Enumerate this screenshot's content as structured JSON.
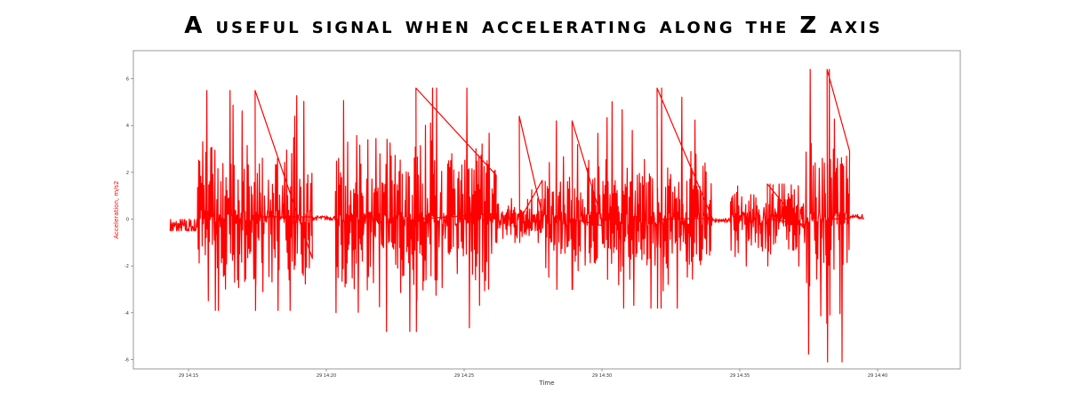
{
  "page_title": "A useful signal when accelerating along the Z axis",
  "chart_data": {
    "type": "line",
    "xlabel": "Time",
    "ylabel": "Acceleration, m/s2",
    "ylim": [
      -6.4,
      7.2
    ],
    "yticks": [
      6,
      4,
      2,
      0,
      -2,
      -4,
      -6
    ],
    "xticks": [
      "29 14:15",
      "29 14:20",
      "29 14:25",
      "29 14:30",
      "29 14:35",
      "29 14:40"
    ],
    "xlim_seconds": [
      0,
      1800
    ],
    "x_range_seconds": [
      80,
      1590
    ],
    "grid": false,
    "legend": "none",
    "series": [
      {
        "color": "#ff0000",
        "segments": [
          {
            "start": 80,
            "end": 140,
            "baseline": -0.35,
            "amp": 0.4,
            "min": -0.5,
            "max": 0.1
          },
          {
            "start": 140,
            "end": 390,
            "baseline": 0.1,
            "amp": 2.8,
            "min": -3.9,
            "max": 5.5
          },
          {
            "start": 390,
            "end": 440,
            "baseline": 0.05,
            "amp": 0.1,
            "min": -0.1,
            "max": 0.2
          },
          {
            "start": 440,
            "end": 790,
            "baseline": 0.0,
            "amp": 3.2,
            "min": -4.8,
            "max": 5.6
          },
          {
            "start": 790,
            "end": 890,
            "baseline": 0.0,
            "amp": 0.8,
            "min": -1.0,
            "max": 4.4
          },
          {
            "start": 890,
            "end": 1020,
            "baseline": 0.0,
            "amp": 2.2,
            "min": -3.0,
            "max": 4.2
          },
          {
            "start": 1020,
            "end": 1260,
            "baseline": 0.0,
            "amp": 2.4,
            "min": -3.8,
            "max": 5.6
          },
          {
            "start": 1260,
            "end": 1300,
            "baseline": -0.05,
            "amp": 0.1,
            "min": -0.2,
            "max": 1.0
          },
          {
            "start": 1300,
            "end": 1460,
            "baseline": 0.0,
            "amp": 1.3,
            "min": -2.0,
            "max": 1.5
          },
          {
            "start": 1460,
            "end": 1560,
            "baseline": 0.0,
            "amp": 3.5,
            "min": -6.1,
            "max": 6.4
          },
          {
            "start": 1560,
            "end": 1590,
            "baseline": 0.1,
            "amp": 0.1,
            "min": 0.0,
            "max": 0.2
          }
        ]
      }
    ]
  }
}
